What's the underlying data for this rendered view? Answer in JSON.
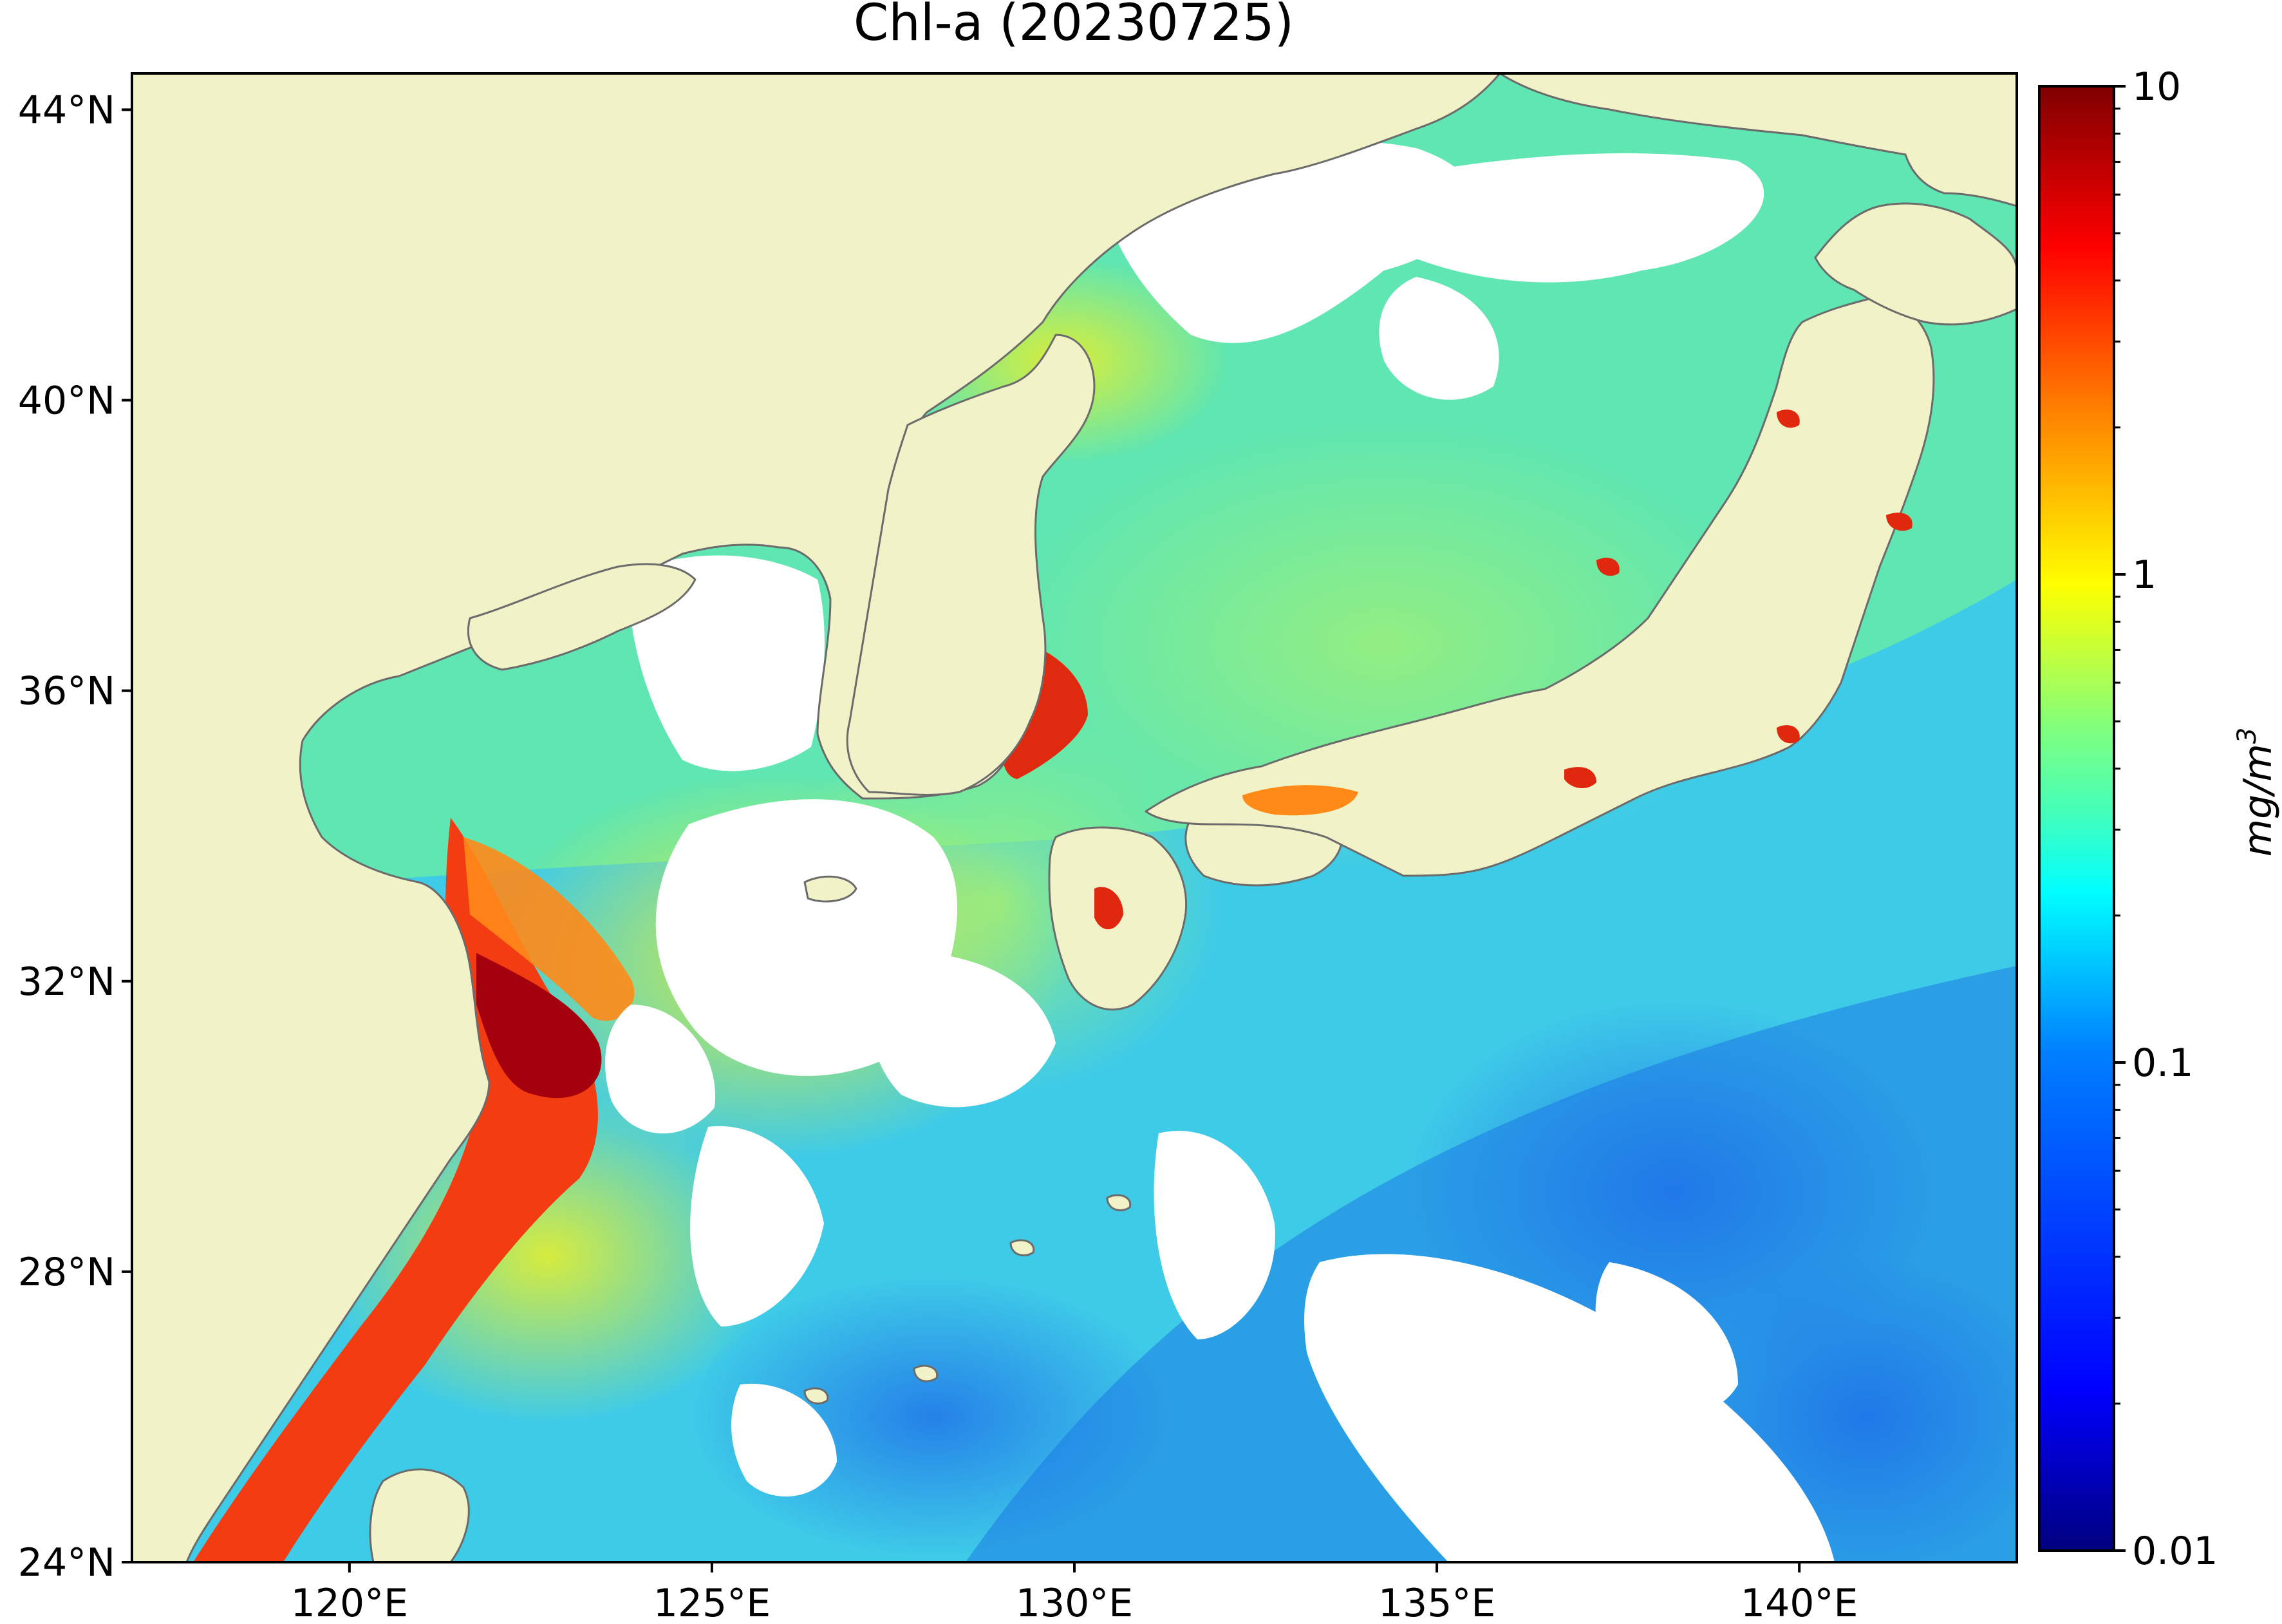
{
  "title": "Chl-a (20230725)",
  "map": {
    "lon_range": [
      117,
      143
    ],
    "lat_range": [
      24,
      44.5
    ],
    "lon_ticks": [
      {
        "value": 120,
        "label": "120°E"
      },
      {
        "value": 125,
        "label": "125°E"
      },
      {
        "value": 130,
        "label": "130°E"
      },
      {
        "value": 135,
        "label": "135°E"
      },
      {
        "value": 140,
        "label": "140°E"
      }
    ],
    "lat_ticks": [
      {
        "value": 44,
        "label": "44°N"
      },
      {
        "value": 40,
        "label": "40°N"
      },
      {
        "value": 36,
        "label": "36°N"
      },
      {
        "value": 32,
        "label": "32°N"
      },
      {
        "value": 28,
        "label": "28°N"
      },
      {
        "value": 24,
        "label": "24°N"
      }
    ],
    "colors": {
      "land": "#f1f2c8",
      "no_data_cloud": "#ffffff",
      "coastline": "#6b6b6b"
    }
  },
  "colorbar": {
    "label_main": "mg/m",
    "label_exp": "3",
    "scale": "log",
    "range": [
      0.01,
      10
    ],
    "ticks": [
      {
        "value": 10,
        "label": "10"
      },
      {
        "value": 1,
        "label": "1"
      },
      {
        "value": 0.1,
        "label": "0.1"
      },
      {
        "value": 0.01,
        "label": "0.01"
      }
    ],
    "colormap": [
      "#00007f",
      "#0000ff",
      "#007fff",
      "#00ffff",
      "#7fff7f",
      "#ffff00",
      "#ff7f00",
      "#ff0000",
      "#7f0000"
    ]
  }
}
